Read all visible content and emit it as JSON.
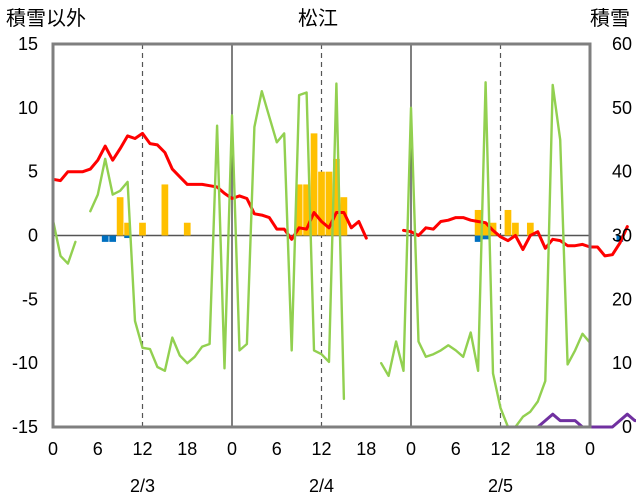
{
  "chart_data": {
    "type": "bar+line",
    "title": "松江",
    "left_axis_label": "積雪以外",
    "right_axis_label": "積雪",
    "ylim_left": [
      -15,
      15
    ],
    "ylim_right": [
      0,
      60
    ],
    "left_ticks": [
      "15",
      "10",
      "5",
      "0",
      "-5",
      "-10",
      "-15"
    ],
    "right_ticks": [
      "60",
      "50",
      "40",
      "30",
      "20",
      "10",
      "0"
    ],
    "x_ticks": [
      "0",
      "6",
      "12",
      "18",
      "0",
      "6",
      "12",
      "18",
      "0",
      "6",
      "12",
      "18",
      "0"
    ],
    "dates": [
      "2/3",
      "2/4",
      "2/5"
    ],
    "grid": "vertical dashed at 12h, solid at day boundaries",
    "series": [
      {
        "color": "#ff0000",
        "axis": "left",
        "points": [
          [
            0,
            4.4
          ],
          [
            1,
            4.3
          ],
          [
            2,
            5.0
          ],
          [
            3,
            5.0
          ],
          [
            4,
            5.0
          ],
          [
            5,
            5.2
          ],
          [
            6,
            5.9
          ],
          [
            7,
            7.0
          ],
          [
            8,
            5.9
          ],
          [
            9,
            6.8
          ],
          [
            10,
            7.8
          ],
          [
            11,
            7.6
          ],
          [
            12,
            8.0
          ],
          [
            13,
            7.2
          ],
          [
            14,
            7.1
          ],
          [
            15,
            6.5
          ],
          [
            16,
            5.2
          ],
          [
            17,
            4.6
          ],
          [
            18,
            4.0
          ],
          [
            19,
            4.0
          ],
          [
            20,
            4.0
          ],
          [
            21,
            3.9
          ],
          [
            22,
            3.8
          ],
          [
            23,
            3.3
          ],
          [
            24,
            2.9
          ],
          [
            25,
            3.1
          ],
          [
            26,
            2.9
          ],
          [
            27,
            1.7
          ],
          [
            28,
            1.6
          ],
          [
            29,
            1.4
          ],
          [
            30,
            0.5
          ],
          [
            31,
            0.5
          ],
          [
            32,
            -0.3
          ],
          [
            33,
            0.6
          ],
          [
            34,
            0.5
          ],
          [
            35,
            1.8
          ],
          [
            36,
            1.1
          ],
          [
            37,
            0.6
          ],
          [
            38,
            1.8
          ],
          [
            39,
            1.8
          ],
          [
            40,
            0.6
          ],
          [
            41,
            1.1
          ],
          [
            42,
            -0.2
          ],
          [
            43,
            null
          ],
          [
            44,
            null
          ],
          [
            45,
            null
          ],
          [
            46,
            null
          ],
          [
            47,
            0.4
          ],
          [
            48,
            0.3
          ],
          [
            49,
            0.0
          ],
          [
            50,
            0.6
          ],
          [
            51,
            0.5
          ],
          [
            52,
            1.1
          ],
          [
            53,
            1.2
          ],
          [
            54,
            1.4
          ],
          [
            55,
            1.4
          ],
          [
            56,
            1.2
          ],
          [
            57,
            1.1
          ],
          [
            58,
            1.0
          ],
          [
            59,
            0.4
          ],
          [
            60,
            -0.1
          ],
          [
            61,
            -0.4
          ],
          [
            62,
            0.0
          ],
          [
            63,
            -1.1
          ],
          [
            64,
            0.0
          ],
          [
            65,
            0.3
          ],
          [
            66,
            -1.0
          ],
          [
            67,
            -0.3
          ],
          [
            68,
            -0.4
          ],
          [
            69,
            -0.8
          ],
          [
            70,
            -0.8
          ],
          [
            71,
            -0.7
          ],
          [
            72,
            -0.9
          ],
          [
            73,
            -0.9
          ],
          [
            74,
            -1.6
          ],
          [
            75,
            -1.5
          ],
          [
            76,
            -0.6
          ],
          [
            77,
            0.7
          ]
        ]
      },
      {
        "color": "#92d050",
        "axis": "left",
        "points": [
          [
            0,
            1.2
          ],
          [
            1,
            -1.6
          ],
          [
            2,
            -2.2
          ],
          [
            3,
            -0.5
          ],
          [
            4,
            null
          ],
          [
            5,
            1.9
          ],
          [
            6,
            3.2
          ],
          [
            7,
            6.0
          ],
          [
            8,
            3.2
          ],
          [
            9,
            3.5
          ],
          [
            10,
            4.2
          ],
          [
            11,
            -6.7
          ],
          [
            12,
            -8.8
          ],
          [
            13,
            -8.9
          ],
          [
            14,
            -10.3
          ],
          [
            15,
            -10.6
          ],
          [
            16,
            -8.0
          ],
          [
            17,
            -9.4
          ],
          [
            18,
            -10.0
          ],
          [
            19,
            -9.5
          ],
          [
            20,
            -8.7
          ],
          [
            21,
            -8.5
          ],
          [
            22,
            8.6
          ],
          [
            23,
            -10.4
          ],
          [
            24,
            9.4
          ],
          [
            25,
            -9.0
          ],
          [
            26,
            -8.5
          ],
          [
            27,
            8.5
          ],
          [
            28,
            11.3
          ],
          [
            29,
            9.3
          ],
          [
            30,
            7.3
          ],
          [
            31,
            8.0
          ],
          [
            32,
            -9.0
          ],
          [
            33,
            11.0
          ],
          [
            34,
            11.2
          ],
          [
            35,
            -9.0
          ],
          [
            36,
            -9.3
          ],
          [
            37,
            -9.9
          ],
          [
            38,
            11.9
          ],
          [
            39,
            -12.8
          ],
          [
            40,
            null
          ],
          [
            41,
            null
          ],
          [
            42,
            null
          ],
          [
            43,
            null
          ],
          [
            44,
            -10.0
          ],
          [
            45,
            -11.0
          ],
          [
            46,
            -8.3
          ],
          [
            47,
            -10.6
          ],
          [
            48,
            10.0
          ],
          [
            49,
            -8.3
          ],
          [
            50,
            -9.5
          ],
          [
            51,
            -9.3
          ],
          [
            52,
            -9.0
          ],
          [
            53,
            -8.6
          ],
          [
            54,
            -9.0
          ],
          [
            55,
            -9.5
          ],
          [
            56,
            -7.6
          ],
          [
            57,
            -10.6
          ],
          [
            58,
            12.0
          ],
          [
            59,
            -10.8
          ],
          [
            60,
            -13.5
          ],
          [
            61,
            -15.0
          ],
          [
            62,
            -15.0
          ],
          [
            63,
            -14.2
          ],
          [
            64,
            -13.8
          ],
          [
            65,
            -13.0
          ],
          [
            66,
            -11.4
          ],
          [
            67,
            11.8
          ],
          [
            68,
            7.5
          ],
          [
            69,
            -10.1
          ],
          [
            70,
            -9.0
          ],
          [
            71,
            -7.7
          ],
          [
            72,
            -8.4
          ]
        ]
      },
      {
        "color": "#7030a0",
        "axis": "right",
        "points": [
          [
            0,
            0
          ],
          [
            1,
            0
          ],
          [
            2,
            0
          ],
          [
            3,
            0
          ],
          [
            4,
            0
          ],
          [
            5,
            0
          ],
          [
            6,
            0
          ],
          [
            7,
            0
          ],
          [
            8,
            0
          ],
          [
            9,
            0
          ],
          [
            10,
            0
          ],
          [
            11,
            0
          ],
          [
            12,
            0
          ],
          [
            13,
            0
          ],
          [
            14,
            0
          ],
          [
            15,
            0
          ],
          [
            16,
            0
          ],
          [
            17,
            0
          ],
          [
            18,
            0
          ],
          [
            19,
            0
          ],
          [
            20,
            0
          ],
          [
            21,
            0
          ],
          [
            22,
            0
          ],
          [
            23,
            0
          ],
          [
            24,
            0
          ],
          [
            25,
            0
          ],
          [
            26,
            0
          ],
          [
            27,
            0
          ],
          [
            28,
            0
          ],
          [
            29,
            0
          ],
          [
            30,
            0
          ],
          [
            31,
            0
          ],
          [
            32,
            0
          ],
          [
            33,
            0
          ],
          [
            34,
            0
          ],
          [
            35,
            0
          ],
          [
            36,
            0
          ],
          [
            37,
            0
          ],
          [
            38,
            0
          ],
          [
            39,
            0
          ],
          [
            40,
            0
          ],
          [
            41,
            0
          ],
          [
            42,
            0
          ],
          [
            43,
            null
          ],
          [
            44,
            null
          ],
          [
            45,
            null
          ],
          [
            46,
            null
          ],
          [
            47,
            0
          ],
          [
            48,
            0
          ],
          [
            49,
            0
          ],
          [
            50,
            0
          ],
          [
            51,
            0
          ],
          [
            52,
            0
          ],
          [
            53,
            0
          ],
          [
            54,
            0
          ],
          [
            55,
            0
          ],
          [
            56,
            0
          ],
          [
            57,
            0
          ],
          [
            58,
            0
          ],
          [
            59,
            0
          ],
          [
            60,
            0
          ],
          [
            61,
            0
          ],
          [
            62,
            0
          ],
          [
            63,
            0
          ],
          [
            64,
            0
          ],
          [
            65,
            0
          ],
          [
            66,
            1
          ],
          [
            67,
            2
          ],
          [
            68,
            1
          ],
          [
            69,
            1
          ],
          [
            70,
            1
          ],
          [
            71,
            0
          ],
          [
            72,
            0
          ],
          [
            73,
            0
          ],
          [
            74,
            0
          ],
          [
            75,
            0
          ],
          [
            76,
            1
          ],
          [
            77,
            2
          ],
          [
            78,
            1
          ],
          [
            79,
            1
          ]
        ]
      },
      {
        "color": "#ffc000",
        "axis": "left",
        "type": "bar",
        "points": [
          [
            9,
            3.0
          ],
          [
            10,
            1.0
          ],
          [
            12,
            1.0
          ],
          [
            15,
            4.0
          ],
          [
            18,
            1.0
          ],
          [
            33,
            4.0
          ],
          [
            34,
            4.0
          ],
          [
            35,
            8.0
          ],
          [
            36,
            5.0
          ],
          [
            37,
            5.0
          ],
          [
            38,
            6.0
          ],
          [
            39,
            3.0
          ],
          [
            57,
            2.0
          ],
          [
            58,
            1.0
          ],
          [
            59,
            1.0
          ],
          [
            61,
            2.0
          ],
          [
            62,
            1.0
          ],
          [
            64,
            1.0
          ]
        ]
      },
      {
        "color": "#0070c0",
        "axis": "left",
        "type": "bar",
        "points": [
          [
            7,
            -0.5
          ],
          [
            8,
            -0.5
          ],
          [
            10,
            -0.2
          ],
          [
            57,
            -0.5
          ],
          [
            58,
            -0.3
          ],
          [
            76,
            -0.5
          ]
        ]
      }
    ]
  }
}
